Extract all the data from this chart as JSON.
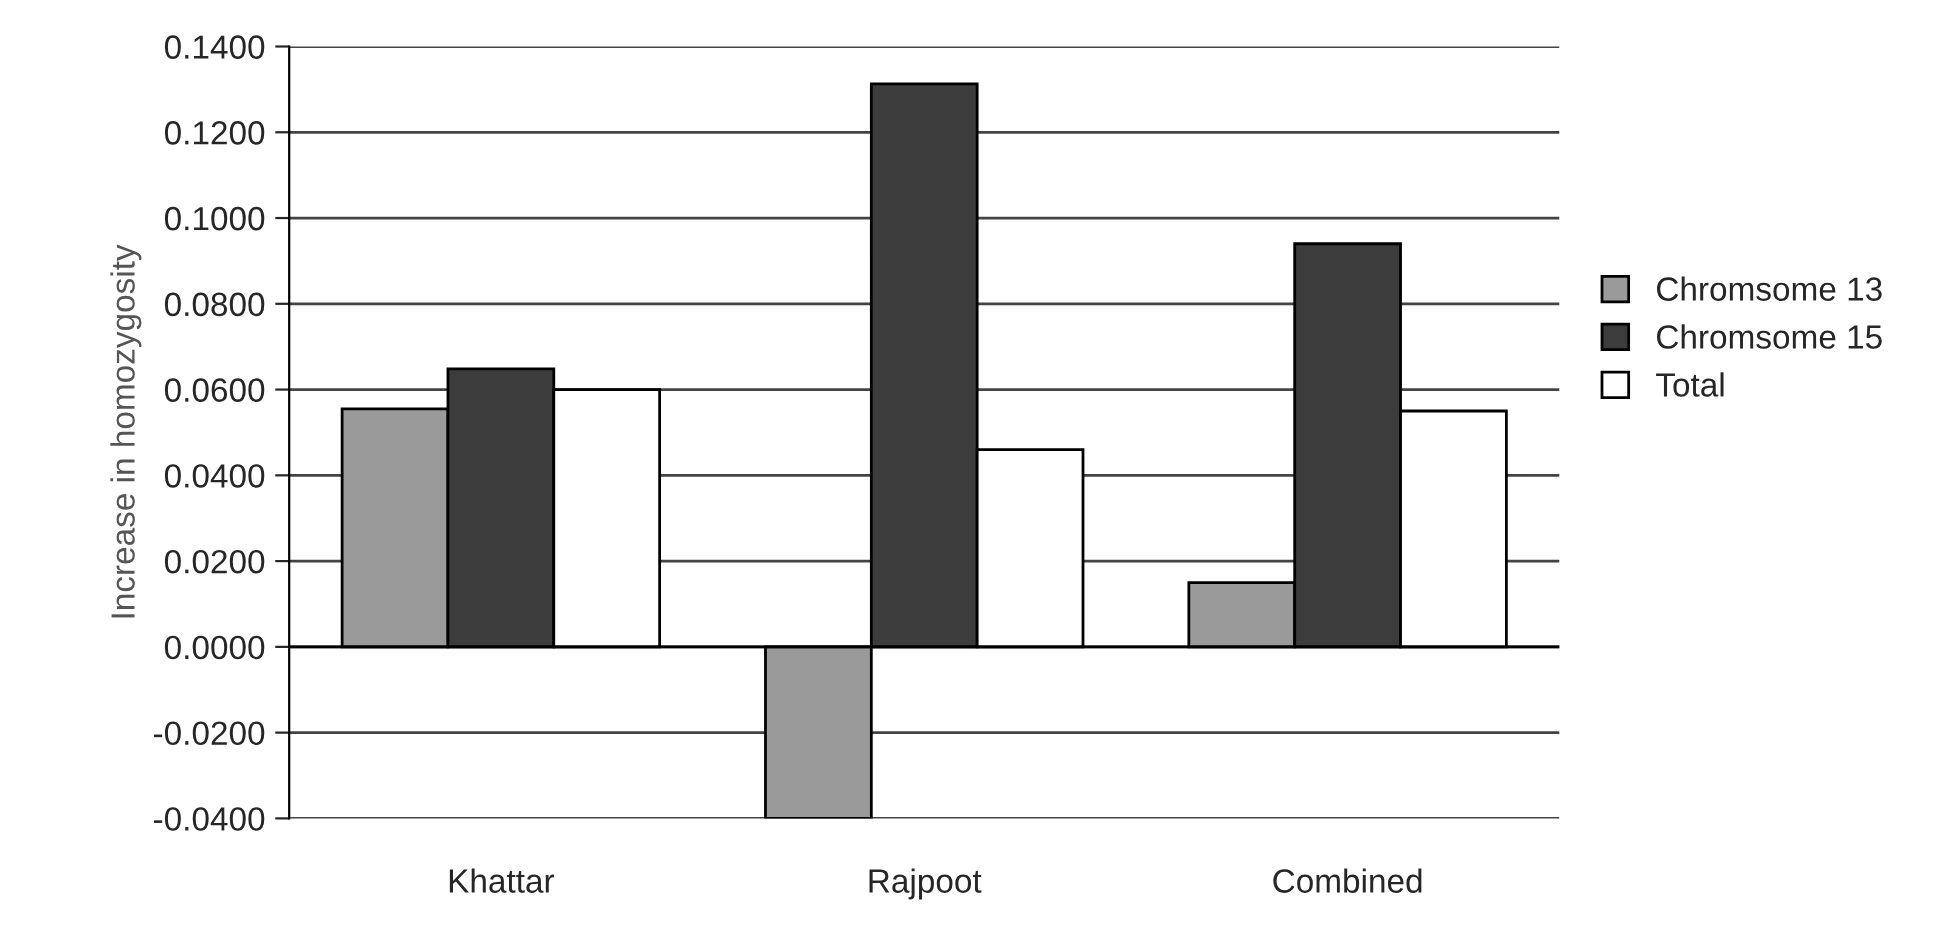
{
  "chart_data": {
    "type": "bar",
    "ylabel": "Increase in homozygosity",
    "categories": [
      "Khattar",
      "Rajpoot",
      "Combined"
    ],
    "series": [
      {
        "name": "Chromsome 13",
        "color": "#9a9a9a",
        "values": [
          0.0555,
          -0.04,
          0.015
        ]
      },
      {
        "name": "Chromsome 15",
        "color": "#3c3c3c",
        "values": [
          0.0648,
          0.1313,
          0.094
        ]
      },
      {
        "name": "Total",
        "color": "#ffffff",
        "values": [
          0.06,
          0.046,
          0.055
        ]
      }
    ],
    "ylim": [
      -0.04,
      0.14
    ],
    "yticks": [
      {
        "value": -0.04,
        "label": "-0.0400"
      },
      {
        "value": -0.02,
        "label": "-0.0200"
      },
      {
        "value": 0,
        "label": "0.0000"
      },
      {
        "value": 0.02,
        "label": "0.0200"
      },
      {
        "value": 0.04,
        "label": "0.0400"
      },
      {
        "value": 0.06,
        "label": "0.0600"
      },
      {
        "value": 0.08,
        "label": "0.0800"
      },
      {
        "value": 0.1,
        "label": "0.1000"
      },
      {
        "value": 0.12,
        "label": "0.1200"
      },
      {
        "value": 0.14,
        "label": "0.1400"
      }
    ],
    "grid": "y",
    "legend": "right"
  }
}
